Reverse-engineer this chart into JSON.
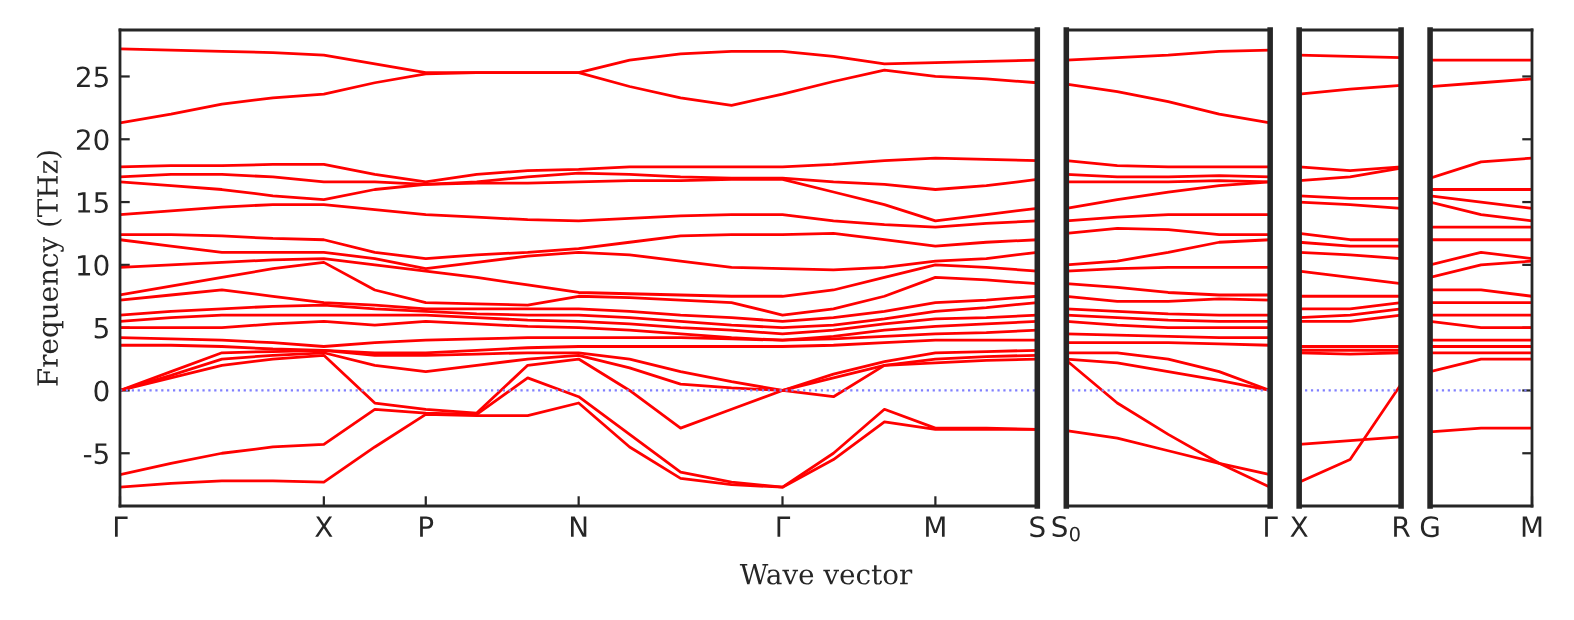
{
  "chart_data": [
    {
      "type": "line",
      "ylabel": "Frequency (THz)",
      "xlabel": "Wave vector",
      "grid": false,
      "legend": false,
      "marker": "none",
      "line_style": "solid",
      "categories": [
        "Γ",
        null,
        null,
        null,
        "X",
        null,
        "P",
        null,
        null,
        "N",
        null,
        null,
        null,
        "Γ",
        null,
        null,
        "M",
        null,
        "S"
      ],
      "ylim": [
        -9.2,
        28.7
      ],
      "yticks": [
        -5,
        0,
        5,
        10,
        15,
        20,
        25
      ],
      "ref_lines": [
        {
          "axis": "y",
          "value": 0,
          "color": "#8080ff",
          "line_style": "dotted"
        }
      ],
      "series": [
        {
          "color": "#ff0000",
          "values": [
            27.2,
            27.1,
            27.0,
            26.9,
            26.7,
            26.0,
            25.3,
            25.3,
            25.3,
            25.3,
            26.3,
            26.8,
            27.0,
            27.0,
            26.6,
            26.0,
            26.1,
            26.2,
            26.3
          ]
        },
        {
          "color": "#ff0000",
          "values": [
            21.3,
            22.0,
            22.8,
            23.3,
            23.6,
            24.5,
            25.2,
            25.3,
            25.3,
            25.3,
            24.2,
            23.3,
            22.7,
            23.6,
            24.6,
            25.5,
            25.0,
            24.8,
            24.5
          ]
        },
        {
          "color": "#ff0000",
          "values": [
            17.8,
            17.9,
            17.9,
            18.0,
            18.0,
            17.2,
            16.6,
            17.2,
            17.5,
            17.6,
            17.8,
            17.8,
            17.8,
            17.8,
            18.0,
            18.3,
            18.5,
            18.4,
            18.3
          ]
        },
        {
          "color": "#ff0000",
          "values": [
            17.0,
            17.2,
            17.2,
            17.0,
            16.6,
            16.6,
            16.4,
            16.6,
            17.0,
            17.3,
            17.2,
            17.0,
            16.9,
            16.9,
            16.6,
            16.4,
            16.0,
            16.3,
            16.8
          ]
        },
        {
          "color": "#ff0000",
          "values": [
            16.6,
            16.3,
            16.0,
            15.5,
            15.2,
            16.0,
            16.4,
            16.5,
            16.5,
            16.6,
            16.7,
            16.7,
            16.8,
            16.8,
            15.8,
            14.8,
            13.5,
            14.0,
            14.5
          ]
        },
        {
          "color": "#ff0000",
          "values": [
            14.0,
            14.3,
            14.6,
            14.8,
            14.8,
            14.4,
            14.0,
            13.8,
            13.6,
            13.5,
            13.7,
            13.9,
            14.0,
            14.0,
            13.5,
            13.2,
            13.0,
            13.3,
            13.5
          ]
        },
        {
          "color": "#ff0000",
          "values": [
            12.4,
            12.4,
            12.3,
            12.1,
            12.0,
            11.0,
            10.5,
            10.8,
            11.0,
            11.3,
            11.8,
            12.3,
            12.4,
            12.4,
            12.5,
            12.0,
            11.5,
            11.8,
            12.0
          ]
        },
        {
          "color": "#ff0000",
          "values": [
            12.0,
            11.5,
            11.0,
            11.0,
            11.0,
            10.5,
            9.7,
            10.2,
            10.7,
            11.0,
            10.8,
            10.3,
            9.8,
            9.7,
            9.6,
            9.8,
            10.3,
            10.5,
            11.0
          ]
        },
        {
          "color": "#ff0000",
          "values": [
            9.8,
            10.0,
            10.2,
            10.4,
            10.5,
            10.0,
            9.5,
            9.0,
            8.4,
            7.8,
            7.7,
            7.6,
            7.5,
            7.5,
            8.0,
            9.0,
            10.0,
            9.8,
            9.5
          ]
        },
        {
          "color": "#ff0000",
          "values": [
            7.6,
            8.3,
            9.0,
            9.7,
            10.2,
            8.0,
            7.0,
            6.9,
            6.8,
            7.5,
            7.4,
            7.2,
            7.0,
            6.0,
            6.5,
            7.5,
            9.0,
            8.8,
            8.5
          ]
        },
        {
          "color": "#ff0000",
          "values": [
            7.2,
            7.6,
            8.0,
            7.5,
            7.0,
            6.8,
            6.5,
            6.5,
            6.5,
            6.5,
            6.3,
            6.0,
            5.8,
            5.5,
            5.8,
            6.3,
            7.0,
            7.2,
            7.5
          ]
        },
        {
          "color": "#ff0000",
          "values": [
            6.0,
            6.3,
            6.5,
            6.7,
            6.8,
            6.5,
            6.3,
            6.1,
            6.0,
            6.0,
            5.8,
            5.5,
            5.2,
            5.0,
            5.2,
            5.7,
            6.3,
            6.6,
            7.0
          ]
        },
        {
          "color": "#ff0000",
          "values": [
            5.5,
            5.8,
            6.0,
            6.0,
            6.0,
            6.0,
            6.0,
            5.8,
            5.6,
            5.5,
            5.3,
            5.0,
            4.8,
            4.5,
            4.8,
            5.3,
            5.7,
            5.8,
            6.0
          ]
        },
        {
          "color": "#ff0000",
          "values": [
            5.0,
            5.0,
            5.0,
            5.3,
            5.5,
            5.2,
            5.5,
            5.3,
            5.1,
            5.0,
            4.8,
            4.5,
            4.2,
            4.0,
            4.3,
            4.8,
            5.1,
            5.3,
            5.5
          ]
        },
        {
          "color": "#ff0000",
          "values": [
            4.2,
            4.1,
            4.0,
            3.8,
            3.5,
            3.8,
            4.0,
            4.1,
            4.2,
            4.2,
            4.2,
            4.2,
            4.1,
            4.0,
            4.1,
            4.3,
            4.5,
            4.6,
            4.8
          ]
        },
        {
          "color": "#ff0000",
          "values": [
            3.6,
            3.6,
            3.5,
            3.3,
            3.2,
            3.0,
            3.0,
            3.2,
            3.4,
            3.5,
            3.5,
            3.5,
            3.5,
            3.5,
            3.6,
            3.8,
            4.0,
            4.0,
            4.0
          ]
        },
        {
          "color": "#ff0000",
          "values": [
            0,
            1.5,
            3.0,
            3.1,
            3.2,
            2.8,
            2.8,
            2.9,
            3.0,
            3.0,
            2.5,
            1.5,
            0.7,
            0,
            1.3,
            2.3,
            3.0,
            3.1,
            3.2
          ]
        },
        {
          "color": "#ff0000",
          "values": [
            0,
            1.2,
            2.5,
            2.8,
            3.0,
            2.0,
            1.5,
            2.0,
            2.5,
            2.8,
            1.8,
            0.5,
            0.2,
            0,
            1.0,
            2.0,
            2.5,
            2.7,
            2.8
          ]
        },
        {
          "color": "#ff0000",
          "values": [
            0,
            1.0,
            2.0,
            2.5,
            2.8,
            -1.0,
            -1.5,
            -1.8,
            2.0,
            2.5,
            0,
            -3.0,
            -1.5,
            0,
            -0.5,
            2.0,
            2.2,
            2.4,
            2.5
          ]
        },
        {
          "color": "#ff0000",
          "values": [
            -6.7,
            -5.8,
            -5.0,
            -4.5,
            -4.3,
            -1.5,
            -1.8,
            -1.9,
            1.0,
            -0.5,
            -3.5,
            -6.5,
            -7.3,
            -7.7,
            -5.0,
            -1.5,
            -3.0,
            -3.0,
            -3.1
          ]
        },
        {
          "color": "#ff0000",
          "values": [
            -7.7,
            -7.4,
            -7.2,
            -7.2,
            -7.3,
            -4.5,
            -1.9,
            -2.0,
            -2.0,
            -1.0,
            -4.5,
            -7.0,
            -7.5,
            -7.7,
            -5.5,
            -2.5,
            -3.1,
            -3.1,
            -3.1
          ]
        }
      ]
    },
    {
      "type": "line",
      "tick_labels": "x",
      "grid": false,
      "legend": false,
      "marker": "none",
      "line_style": "solid",
      "categories": [
        "S$_{0}$",
        null,
        null,
        null,
        "Γ"
      ],
      "ylim": [
        -9.2,
        28.7
      ],
      "yticks": [
        -5,
        0,
        5,
        10,
        15,
        20,
        25
      ],
      "ref_lines": [
        {
          "axis": "y",
          "value": 0,
          "color": "#8080ff",
          "line_style": "dotted"
        }
      ],
      "series": [
        {
          "color": "#ff0000",
          "values": [
            26.3,
            26.5,
            26.7,
            27.0,
            27.1
          ]
        },
        {
          "color": "#ff0000",
          "values": [
            24.4,
            23.8,
            23.0,
            22.0,
            21.3
          ]
        },
        {
          "color": "#ff0000",
          "values": [
            18.3,
            17.9,
            17.8,
            17.8,
            17.8
          ]
        },
        {
          "color": "#ff0000",
          "values": [
            17.2,
            17.0,
            17.0,
            17.1,
            17.0
          ]
        },
        {
          "color": "#ff0000",
          "values": [
            16.6,
            16.6,
            16.6,
            16.7,
            16.6
          ]
        },
        {
          "color": "#ff0000",
          "values": [
            14.5,
            15.2,
            15.8,
            16.3,
            16.6
          ]
        },
        {
          "color": "#ff0000",
          "values": [
            13.5,
            13.8,
            14.0,
            14.0,
            14.0
          ]
        },
        {
          "color": "#ff0000",
          "values": [
            12.5,
            12.9,
            12.8,
            12.4,
            12.4
          ]
        },
        {
          "color": "#ff0000",
          "values": [
            10.0,
            10.3,
            11.0,
            11.8,
            12.0
          ]
        },
        {
          "color": "#ff0000",
          "values": [
            9.5,
            9.7,
            9.8,
            9.8,
            9.8
          ]
        },
        {
          "color": "#ff0000",
          "values": [
            8.5,
            8.2,
            7.8,
            7.6,
            7.6
          ]
        },
        {
          "color": "#ff0000",
          "values": [
            7.5,
            7.1,
            7.1,
            7.3,
            7.2
          ]
        },
        {
          "color": "#ff0000",
          "values": [
            6.5,
            6.3,
            6.1,
            6.0,
            6.0
          ]
        },
        {
          "color": "#ff0000",
          "values": [
            6.0,
            5.8,
            5.6,
            5.5,
            5.5
          ]
        },
        {
          "color": "#ff0000",
          "values": [
            5.5,
            5.2,
            5.0,
            5.0,
            5.0
          ]
        },
        {
          "color": "#ff0000",
          "values": [
            4.5,
            4.4,
            4.3,
            4.2,
            4.2
          ]
        },
        {
          "color": "#ff0000",
          "values": [
            3.8,
            3.8,
            3.8,
            3.7,
            3.6
          ]
        },
        {
          "color": "#ff0000",
          "values": [
            3.0,
            3.0,
            2.5,
            1.5,
            0
          ]
        },
        {
          "color": "#ff0000",
          "values": [
            2.5,
            2.2,
            1.5,
            0.8,
            0
          ]
        },
        {
          "color": "#ff0000",
          "values": [
            2.4,
            -1.0,
            -3.5,
            -5.8,
            -7.7
          ]
        },
        {
          "color": "#ff0000",
          "values": [
            -3.2,
            -3.8,
            -4.8,
            -5.8,
            -6.7
          ]
        }
      ]
    },
    {
      "type": "line",
      "tick_labels": "x",
      "grid": false,
      "legend": false,
      "marker": "none",
      "line_style": "solid",
      "categories": [
        "X",
        null,
        "R"
      ],
      "ylim": [
        -9.2,
        28.7
      ],
      "yticks": [
        -5,
        0,
        5,
        10,
        15,
        20,
        25
      ],
      "ref_lines": [
        {
          "axis": "y",
          "value": 0,
          "color": "#8080ff",
          "line_style": "dotted"
        }
      ],
      "series": [
        {
          "color": "#ff0000",
          "values": [
            26.7,
            26.6,
            26.5
          ]
        },
        {
          "color": "#ff0000",
          "values": [
            23.6,
            24.0,
            24.3
          ]
        },
        {
          "color": "#ff0000",
          "values": [
            17.8,
            17.5,
            17.8
          ]
        },
        {
          "color": "#ff0000",
          "values": [
            16.7,
            17.0,
            17.7
          ]
        },
        {
          "color": "#ff0000",
          "values": [
            15.5,
            15.3,
            15.3
          ]
        },
        {
          "color": "#ff0000",
          "values": [
            15.0,
            14.8,
            14.5
          ]
        },
        {
          "color": "#ff0000",
          "values": [
            12.5,
            12.0,
            12.0
          ]
        },
        {
          "color": "#ff0000",
          "values": [
            11.8,
            11.5,
            11.5
          ]
        },
        {
          "color": "#ff0000",
          "values": [
            11.0,
            10.8,
            10.5
          ]
        },
        {
          "color": "#ff0000",
          "values": [
            9.5,
            9.0,
            8.5
          ]
        },
        {
          "color": "#ff0000",
          "values": [
            7.5,
            7.5,
            7.5
          ]
        },
        {
          "color": "#ff0000",
          "values": [
            6.5,
            6.5,
            7.0
          ]
        },
        {
          "color": "#ff0000",
          "values": [
            5.8,
            6.0,
            6.5
          ]
        },
        {
          "color": "#ff0000",
          "values": [
            5.5,
            5.5,
            6.0
          ]
        },
        {
          "color": "#ff0000",
          "values": [
            3.5,
            3.5,
            3.5
          ]
        },
        {
          "color": "#ff0000",
          "values": [
            3.2,
            3.2,
            3.2
          ]
        },
        {
          "color": "#ff0000",
          "values": [
            3.0,
            2.9,
            3.0
          ]
        },
        {
          "color": "#ff0000",
          "values": [
            -4.3,
            -4.0,
            -3.7
          ]
        },
        {
          "color": "#ff0000",
          "values": [
            -7.3,
            -5.5,
            0.5
          ]
        }
      ]
    },
    {
      "type": "line",
      "tick_labels": "x",
      "grid": false,
      "legend": false,
      "marker": "none",
      "line_style": "solid",
      "categories": [
        "G",
        null,
        "M"
      ],
      "ylim": [
        -9.2,
        28.7
      ],
      "yticks": [
        -5,
        0,
        5,
        10,
        15,
        20,
        25
      ],
      "ref_lines": [
        {
          "axis": "y",
          "value": 0,
          "color": "#8080ff",
          "line_style": "dotted"
        }
      ],
      "series": [
        {
          "color": "#ff0000",
          "values": [
            26.3,
            26.3,
            26.3
          ]
        },
        {
          "color": "#ff0000",
          "values": [
            24.2,
            24.5,
            24.8
          ]
        },
        {
          "color": "#ff0000",
          "values": [
            16.9,
            18.2,
            18.5
          ]
        },
        {
          "color": "#ff0000",
          "values": [
            16.0,
            16.0,
            16.0
          ]
        },
        {
          "color": "#ff0000",
          "values": [
            15.5,
            15.0,
            14.5
          ]
        },
        {
          "color": "#ff0000",
          "values": [
            15.0,
            14.0,
            13.5
          ]
        },
        {
          "color": "#ff0000",
          "values": [
            13.0,
            13.0,
            13.0
          ]
        },
        {
          "color": "#ff0000",
          "values": [
            12.0,
            12.0,
            12.0
          ]
        },
        {
          "color": "#ff0000",
          "values": [
            10.0,
            11.0,
            10.5
          ]
        },
        {
          "color": "#ff0000",
          "values": [
            9.0,
            10.0,
            10.3
          ]
        },
        {
          "color": "#ff0000",
          "values": [
            8.0,
            8.0,
            7.5
          ]
        },
        {
          "color": "#ff0000",
          "values": [
            7.0,
            7.0,
            7.0
          ]
        },
        {
          "color": "#ff0000",
          "values": [
            6.0,
            6.0,
            6.0
          ]
        },
        {
          "color": "#ff0000",
          "values": [
            5.5,
            5.0,
            5.0
          ]
        },
        {
          "color": "#ff0000",
          "values": [
            4.0,
            4.0,
            4.0
          ]
        },
        {
          "color": "#ff0000",
          "values": [
            3.5,
            3.5,
            3.5
          ]
        },
        {
          "color": "#ff0000",
          "values": [
            3.0,
            3.0,
            3.0
          ]
        },
        {
          "color": "#ff0000",
          "values": [
            1.5,
            2.5,
            2.5
          ]
        },
        {
          "color": "#ff0000",
          "values": [
            -3.3,
            -3.0,
            -3.0
          ]
        }
      ]
    }
  ]
}
